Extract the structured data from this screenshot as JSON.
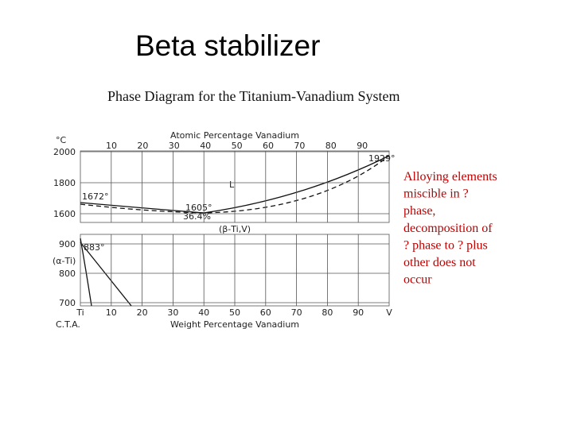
{
  "title": "Beta stabilizer",
  "figure": {
    "title": "Phase Diagram for the Titanium-Vanadium System",
    "y_unit": "°C",
    "top_axis_label": "Atomic Percentage Vanadium",
    "top_ticks": [
      "10",
      "20",
      "30",
      "40",
      "50",
      "60",
      "70",
      "80",
      "90"
    ],
    "upper_y_ticks": [
      "2000",
      "1800",
      "1600"
    ],
    "lower_y_ticks": [
      "900",
      "800",
      "700"
    ],
    "bottom_ticks": [
      "Ti",
      "10",
      "20",
      "30",
      "40",
      "50",
      "60",
      "70",
      "80",
      "90",
      "V"
    ],
    "bottom_axis_label": "Weight Percentage Vanadium",
    "source": "C.T.A.",
    "annotations": {
      "vanadium_melt": "1929°",
      "liquid": "L",
      "titanium_melt": "1672°",
      "minimum": "1605°",
      "minimum_composition": "36.4%",
      "beta_phase": "(β-Ti,V)",
      "transus": "883°",
      "alpha_phase": "(α-Ti)"
    }
  },
  "side_text": [
    "Alloying elements",
    "miscible in ?",
    "phase,",
    "decomposition of",
    "? phase to ? plus",
    "other does not",
    "occur"
  ]
}
